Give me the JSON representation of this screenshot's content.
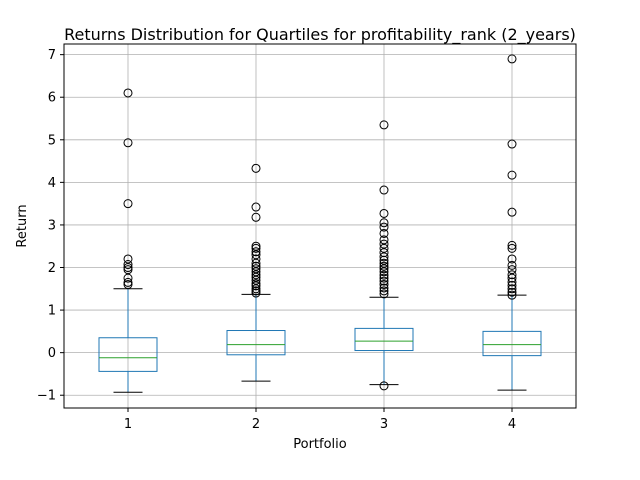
{
  "chart_data": {
    "type": "box",
    "title": "Returns Distribution for Quartiles for profitability_rank (2_years)",
    "xlabel": "Portfolio",
    "ylabel": "Return",
    "categories": [
      "1",
      "2",
      "3",
      "4"
    ],
    "ylim": [
      -1.3,
      7.25
    ],
    "yticks": [
      -1,
      0,
      1,
      2,
      3,
      4,
      5,
      6,
      7
    ],
    "grid": true,
    "colors": {
      "box": "#1f77b4",
      "median": "#2ca02c",
      "whisker": "#1f77b4",
      "cap": "#000000",
      "outlier": "#000000",
      "grid": "#b0b0b0"
    },
    "boxes": [
      {
        "name": "1",
        "whisker_low": -0.93,
        "q1": -0.44,
        "median": -0.12,
        "q3": 0.35,
        "whisker_high": 1.5,
        "outliers": [
          1.6,
          1.65,
          1.75,
          1.95,
          2.0,
          2.07,
          2.2,
          3.5,
          4.93,
          6.1
        ]
      },
      {
        "name": "2",
        "whisker_low": -0.67,
        "q1": -0.05,
        "median": 0.19,
        "q3": 0.52,
        "whisker_high": 1.37,
        "outliers": [
          1.4,
          1.45,
          1.5,
          1.57,
          1.62,
          1.7,
          1.77,
          1.83,
          1.9,
          1.97,
          2.03,
          2.1,
          2.2,
          2.3,
          2.37,
          2.45,
          2.5,
          3.18,
          3.42,
          4.33
        ]
      },
      {
        "name": "3",
        "whisker_low": -0.75,
        "q1": 0.05,
        "median": 0.27,
        "q3": 0.57,
        "whisker_high": 1.3,
        "outliers": [
          -0.78,
          1.38,
          1.45,
          1.52,
          1.6,
          1.68,
          1.75,
          1.82,
          1.9,
          1.97,
          2.03,
          2.1,
          2.17,
          2.25,
          2.35,
          2.45,
          2.55,
          2.65,
          2.8,
          2.95,
          3.05,
          3.27,
          3.82,
          5.35
        ]
      },
      {
        "name": "4",
        "whisker_low": -0.88,
        "q1": -0.07,
        "median": 0.19,
        "q3": 0.5,
        "whisker_high": 1.35,
        "outliers": [
          1.35,
          1.42,
          1.5,
          1.58,
          1.66,
          1.75,
          1.83,
          1.95,
          2.05,
          2.2,
          2.45,
          2.52,
          3.3,
          4.17,
          4.9,
          6.9
        ]
      }
    ]
  }
}
